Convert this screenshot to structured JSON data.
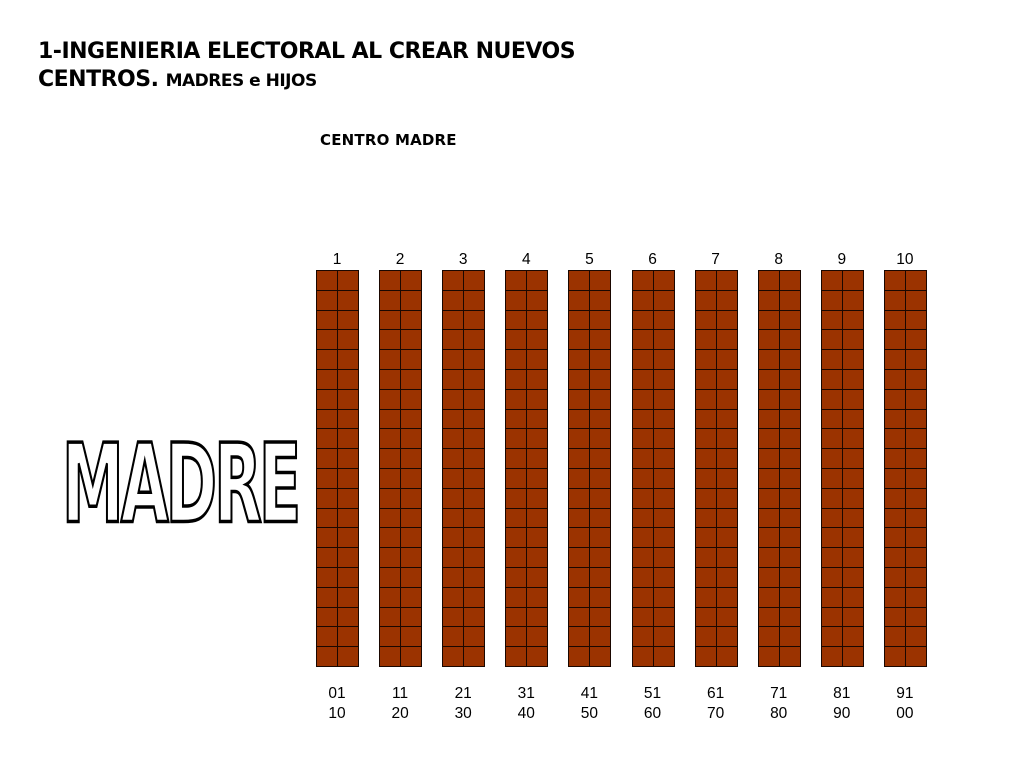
{
  "header": {
    "title_line1": "1-INGENIERIA ELECTORAL AL CREAR NUEVOS",
    "title_line2": "CENTROS.",
    "title_line2_small": "MADRES e HIJOS"
  },
  "diagram": {
    "section_label": "CENTRO MADRE",
    "side_label": "MADRE",
    "cell_color": "#9b3300",
    "rows_per_column": 20,
    "cells_per_row": 2,
    "columns": [
      {
        "label": "1",
        "range_start": "01",
        "range_end": "10"
      },
      {
        "label": "2",
        "range_start": "11",
        "range_end": "20"
      },
      {
        "label": "3",
        "range_start": "21",
        "range_end": "30"
      },
      {
        "label": "4",
        "range_start": "31",
        "range_end": "40"
      },
      {
        "label": "5",
        "range_start": "41",
        "range_end": "50"
      },
      {
        "label": "6",
        "range_start": "51",
        "range_end": "60"
      },
      {
        "label": "7",
        "range_start": "61",
        "range_end": "70"
      },
      {
        "label": "8",
        "range_start": "71",
        "range_end": "80"
      },
      {
        "label": "9",
        "range_start": "81",
        "range_end": "90"
      },
      {
        "label": "10",
        "range_start": "91",
        "range_end": "00"
      }
    ]
  }
}
